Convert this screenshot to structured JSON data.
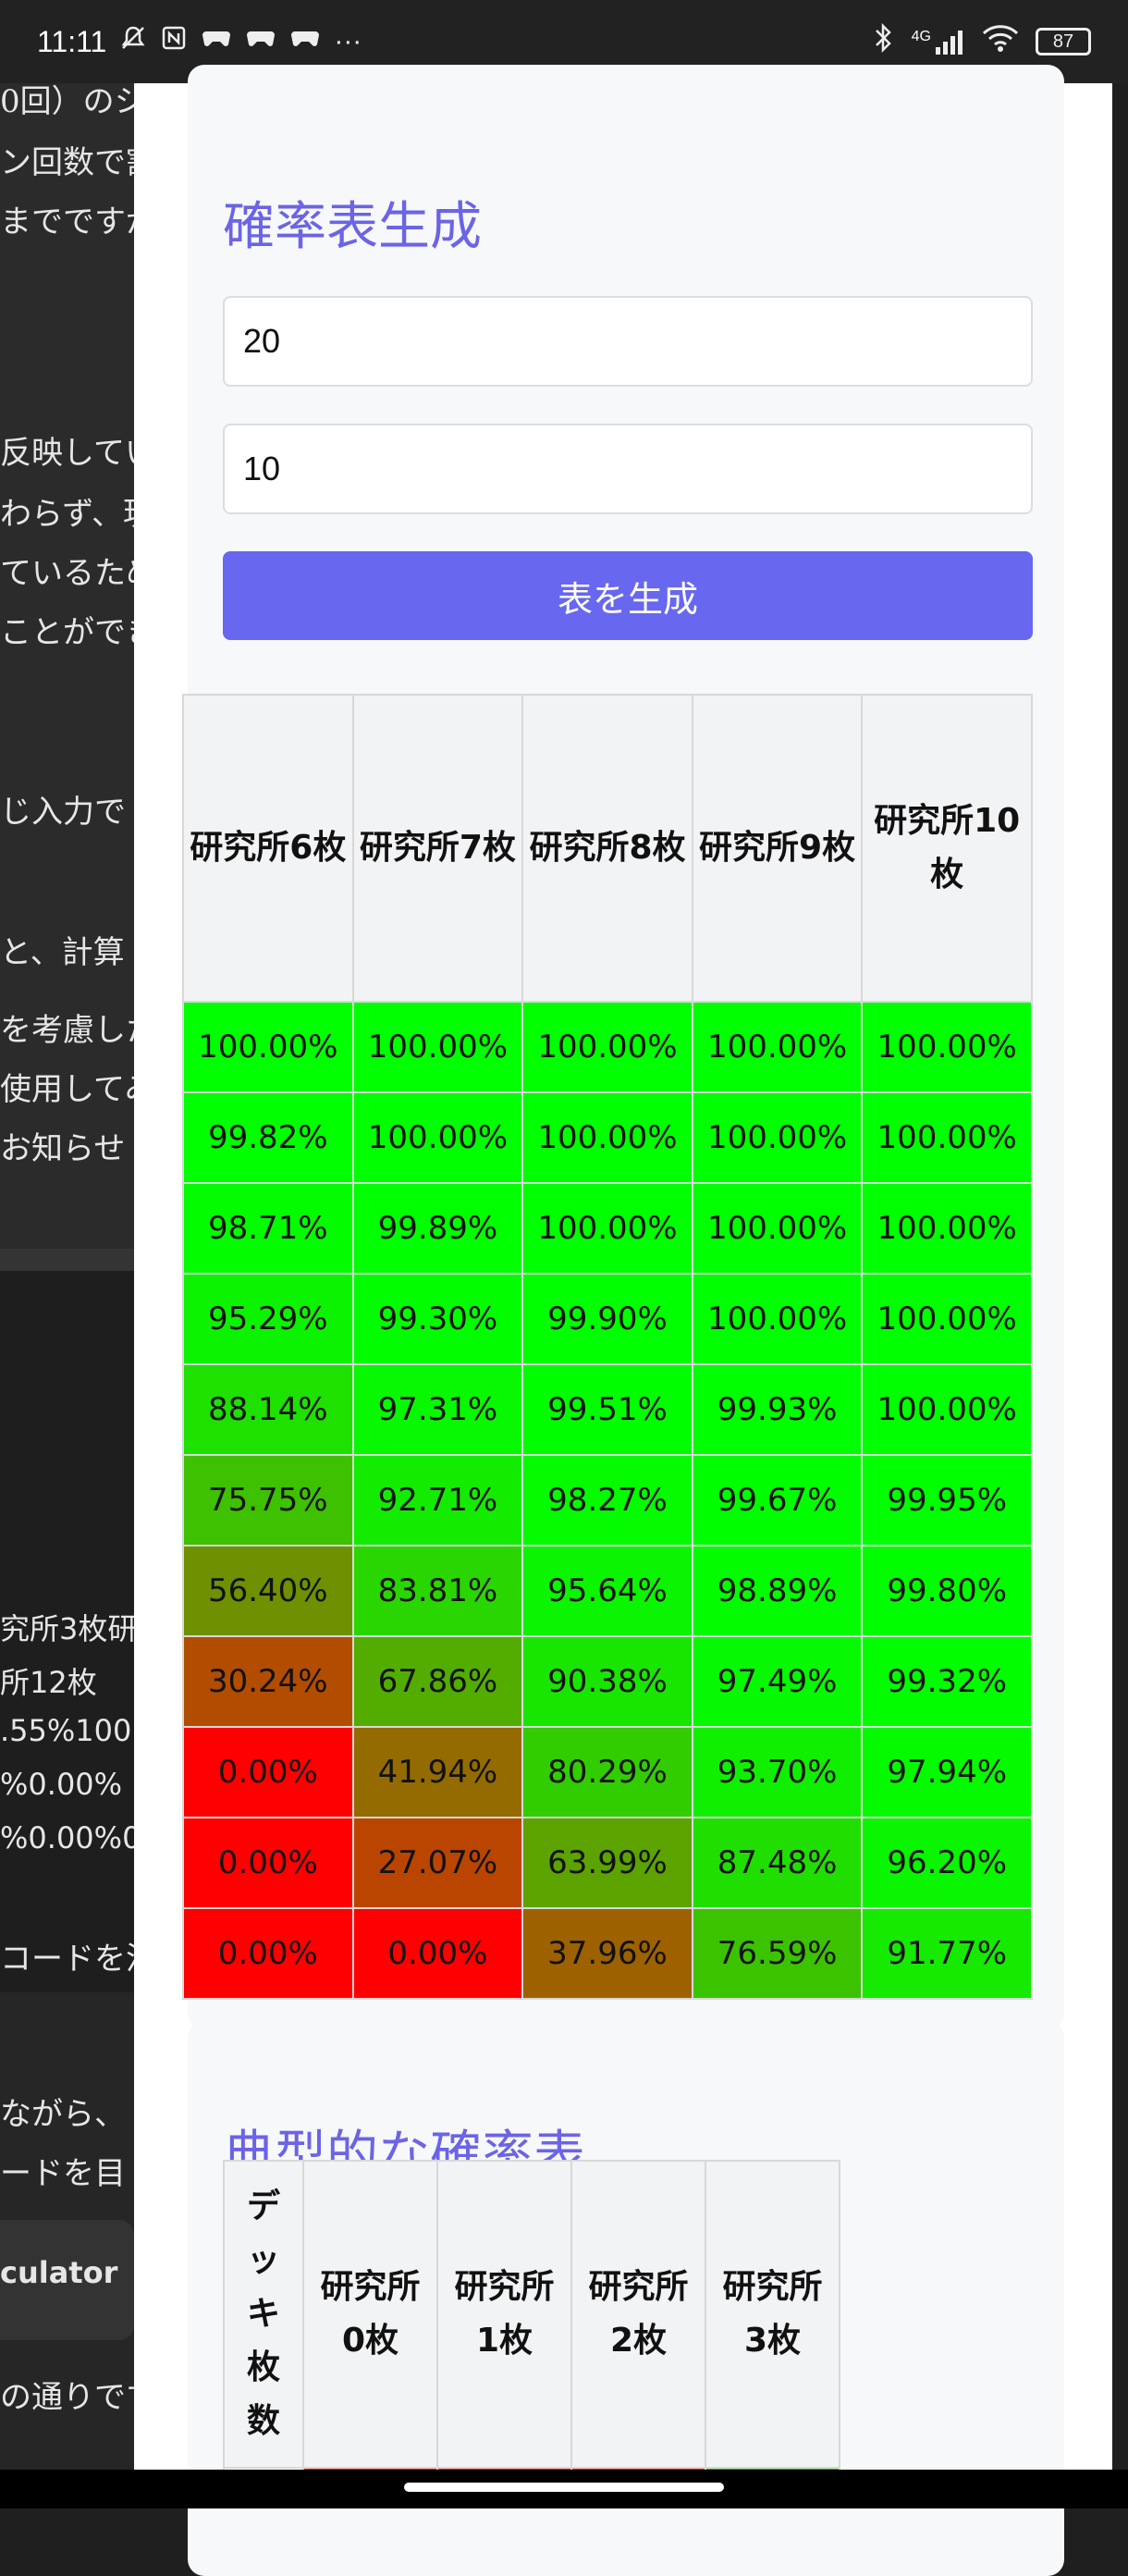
{
  "status_bar": {
    "time": "11:11",
    "notification_icons": [
      "mute-icon",
      "nfc-icon",
      "game-icon",
      "game-icon",
      "game-icon"
    ],
    "more": "···",
    "network": "4G",
    "battery": "87"
  },
  "background_page": {
    "lines": [
      {
        "text": "0回）のシ",
        "top": 0
      },
      {
        "text": "ン回数で割",
        "top": 0
      },
      {
        "text": "までですが",
        "top": 0
      },
      {
        "text": "反映してい",
        "top": 0
      },
      {
        "text": "わらず、現",
        "top": 0
      },
      {
        "text": "ているため",
        "top": 0
      },
      {
        "text": "ことができ",
        "top": 0
      },
      {
        "text": "じ入力で",
        "top": 0
      },
      {
        "text": "と、計算",
        "top": 0
      },
      {
        "text": "を考慮した",
        "top": 0
      },
      {
        "text": "使用してみ",
        "top": 0
      },
      {
        "text": "お知らせ",
        "top": 0
      },
      {
        "text": "究所3枚研",
        "top": 0
      },
      {
        "text": "所12枚",
        "top": 0
      },
      {
        "text": ".55%100",
        "top": 0
      },
      {
        "text": "%0.00%",
        "top": 0
      },
      {
        "text": "%0.00%0",
        "top": 0
      },
      {
        "text": "コードを活",
        "top": 0
      },
      {
        "text": "ながら、",
        "top": 0
      },
      {
        "text": "ードを目",
        "top": 0
      },
      {
        "text": "culator",
        "top": 0
      },
      {
        "text": "の通りです",
        "top": 0
      }
    ]
  },
  "generator": {
    "title": "確率表生成",
    "input1_value": "20",
    "input2_value": "10",
    "button_label": "表を生成"
  },
  "table1": {
    "headers": [
      "研究所6枚",
      "研究所7枚",
      "研究所8枚",
      "研究所9枚",
      "研究所10枚"
    ],
    "rows": [
      [
        "100.00%",
        "100.00%",
        "100.00%",
        "100.00%",
        "100.00%"
      ],
      [
        "99.82%",
        "100.00%",
        "100.00%",
        "100.00%",
        "100.00%"
      ],
      [
        "98.71%",
        "99.89%",
        "100.00%",
        "100.00%",
        "100.00%"
      ],
      [
        "95.29%",
        "99.30%",
        "99.90%",
        "100.00%",
        "100.00%"
      ],
      [
        "88.14%",
        "97.31%",
        "99.51%",
        "99.93%",
        "100.00%"
      ],
      [
        "75.75%",
        "92.71%",
        "98.27%",
        "99.67%",
        "99.95%"
      ],
      [
        "56.40%",
        "83.81%",
        "95.64%",
        "98.89%",
        "99.80%"
      ],
      [
        "30.24%",
        "67.86%",
        "90.38%",
        "97.49%",
        "99.32%"
      ],
      [
        "0.00%",
        "41.94%",
        "80.29%",
        "93.70%",
        "97.94%"
      ],
      [
        "0.00%",
        "27.07%",
        "63.99%",
        "87.48%",
        "96.20%"
      ],
      [
        "0.00%",
        "0.00%",
        "37.96%",
        "76.59%",
        "91.77%"
      ]
    ]
  },
  "typical": {
    "title": "典型的な確率表",
    "headers": [
      "デッキ枚数",
      "研究所0枚",
      "研究所1枚",
      "研究所2枚",
      "研究所3枚"
    ]
  },
  "colors": {
    "accent": "#6b64e6",
    "button": "#6767f0",
    "good": "#00ff00",
    "bad": "#ff0000"
  }
}
